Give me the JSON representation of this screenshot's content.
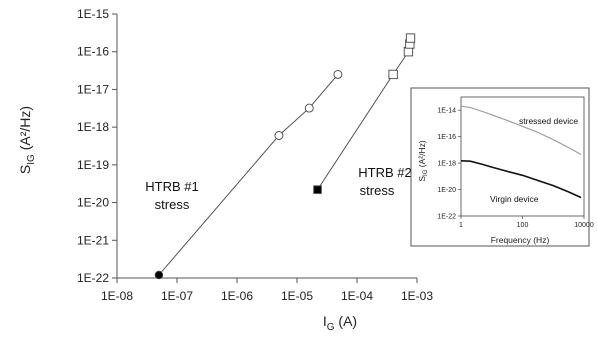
{
  "chart_data": [
    {
      "type": "scatter",
      "xscale": "log",
      "yscale": "log",
      "xlim": [
        1e-08,
        0.001
      ],
      "ylim": [
        1e-22,
        1e-15
      ],
      "xlabel": "I_G (A)",
      "ylabel": "S_IG (A²/Hz)",
      "x_ticks": [
        {
          "value": 1e-08,
          "label": "1E-08"
        },
        {
          "value": 1e-07,
          "label": "1E-07"
        },
        {
          "value": 1e-06,
          "label": "1E-06"
        },
        {
          "value": 1e-05,
          "label": "1E-05"
        },
        {
          "value": 0.0001,
          "label": "1E-04"
        },
        {
          "value": 0.001,
          "label": "1E-03"
        }
      ],
      "y_ticks": [
        {
          "value": 1e-22,
          "label": "1E-22"
        },
        {
          "value": 1e-21,
          "label": "1E-21"
        },
        {
          "value": 1e-20,
          "label": "1E-20"
        },
        {
          "value": 1e-19,
          "label": "1E-19"
        },
        {
          "value": 1e-18,
          "label": "1E-18"
        },
        {
          "value": 1e-17,
          "label": "1E-17"
        },
        {
          "value": 1e-16,
          "label": "1E-16"
        },
        {
          "value": 1e-15,
          "label": "1E-15"
        }
      ],
      "series": [
        {
          "marker": "circle",
          "filled_first": true,
          "color": "#000000",
          "points": [
            {
              "x": 5e-08,
              "y": 1.2e-22
            },
            {
              "x": 5e-06,
              "y": 6e-19
            },
            {
              "x": 1.6e-05,
              "y": 3.2e-18
            },
            {
              "x": 4.8e-05,
              "y": 2.5e-17
            }
          ]
        },
        {
          "marker": "square",
          "filled_first": true,
          "color": "#000000",
          "points": [
            {
              "x": 2.2e-05,
              "y": 2.2e-20
            },
            {
              "x": 0.0004,
              "y": 2.5e-17
            },
            {
              "x": 0.00072,
              "y": 1e-16
            },
            {
              "x": 0.00076,
              "y": 1.6e-16
            },
            {
              "x": 0.00078,
              "y": 2.3e-16
            }
          ]
        }
      ],
      "annotations": [
        {
          "line1": "HTRB #1",
          "line2": "stress",
          "near": {
            "x": 1.2e-07,
            "y": 5e-20
          }
        },
        {
          "line1": "HTRB #2",
          "line2": "stress",
          "near": {
            "x": 5e-05,
            "y": 8e-20
          }
        }
      ],
      "grid": false
    },
    {
      "type": "line",
      "position": "inset-right",
      "xscale": "log",
      "yscale": "log",
      "xlim": [
        1,
        10000
      ],
      "ylim": [
        1e-22,
        1e-13
      ],
      "xlabel": "Frequency (Hz)",
      "ylabel": "S_IG (A²/Hz)",
      "x_ticks": [
        {
          "value": 1,
          "label": "1"
        },
        {
          "value": 100,
          "label": "100"
        },
        {
          "value": 10000,
          "label": "10000"
        }
      ],
      "y_ticks": [
        {
          "value": 1e-14,
          "label": "1E-14"
        },
        {
          "value": 1e-16,
          "label": "1E-16"
        },
        {
          "value": 1e-18,
          "label": "1E-18"
        },
        {
          "value": 1e-20,
          "label": "1E-20"
        },
        {
          "value": 1e-22,
          "label": "1E-22"
        }
      ],
      "series": [
        {
          "name": "stressed device",
          "color": "#999999",
          "points": [
            {
              "x": 1,
              "y": 2e-14
            },
            {
              "x": 2,
              "y": 1.6e-14
            },
            {
              "x": 5,
              "y": 8e-15
            },
            {
              "x": 10,
              "y": 4.5e-15
            },
            {
              "x": 30,
              "y": 1.8e-15
            },
            {
              "x": 100,
              "y": 6e-16
            },
            {
              "x": 300,
              "y": 2.2e-16
            },
            {
              "x": 1000,
              "y": 6e-17
            },
            {
              "x": 3000,
              "y": 1.6e-17
            },
            {
              "x": 8000,
              "y": 4.5e-18
            }
          ]
        },
        {
          "name": "Virgin device",
          "color": "#111111",
          "points": [
            {
              "x": 1,
              "y": 1.5e-18
            },
            {
              "x": 2,
              "y": 1.4e-18
            },
            {
              "x": 5,
              "y": 8e-19
            },
            {
              "x": 10,
              "y": 5e-19
            },
            {
              "x": 30,
              "y": 2.5e-19
            },
            {
              "x": 100,
              "y": 1.2e-19
            },
            {
              "x": 300,
              "y": 5e-20
            },
            {
              "x": 1000,
              "y": 2e-20
            },
            {
              "x": 3000,
              "y": 7e-21
            },
            {
              "x": 8000,
              "y": 2.5e-21
            }
          ]
        }
      ],
      "grid": false
    }
  ]
}
